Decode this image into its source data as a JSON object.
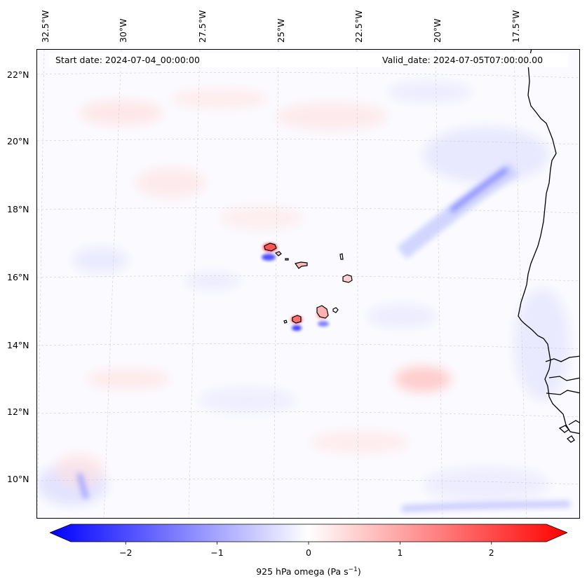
{
  "header": {
    "start_date": "Start date: 2024-07-04_00:00:00",
    "valid_date": "Valid_date: 2024-07-05T07:00:00.00"
  },
  "map": {
    "lon_labels": [
      "32.5°W",
      "30°W",
      "27.5°W",
      "25°W",
      "22.5°W",
      "20°W",
      "17.5°W"
    ],
    "lat_labels": [
      "22°N",
      "20°N",
      "18°N",
      "16°N",
      "14°N",
      "12°N",
      "10°N"
    ],
    "features": [
      "cape-verde-islands",
      "west-africa-coastline",
      "omega-field"
    ]
  },
  "colorbar": {
    "title": "925 hPa omega (Pa s",
    "title_exp": "−1",
    "title_close": ")",
    "min": -2.6,
    "max": 2.6,
    "ticks": [
      "−2",
      "−1",
      "0",
      "1",
      "2"
    ],
    "tick_values": [
      -2,
      -1,
      0,
      1,
      2
    ],
    "colors": {
      "negative": "#0000ff",
      "zero": "#ffffff",
      "positive": "#ff0000"
    }
  }
}
